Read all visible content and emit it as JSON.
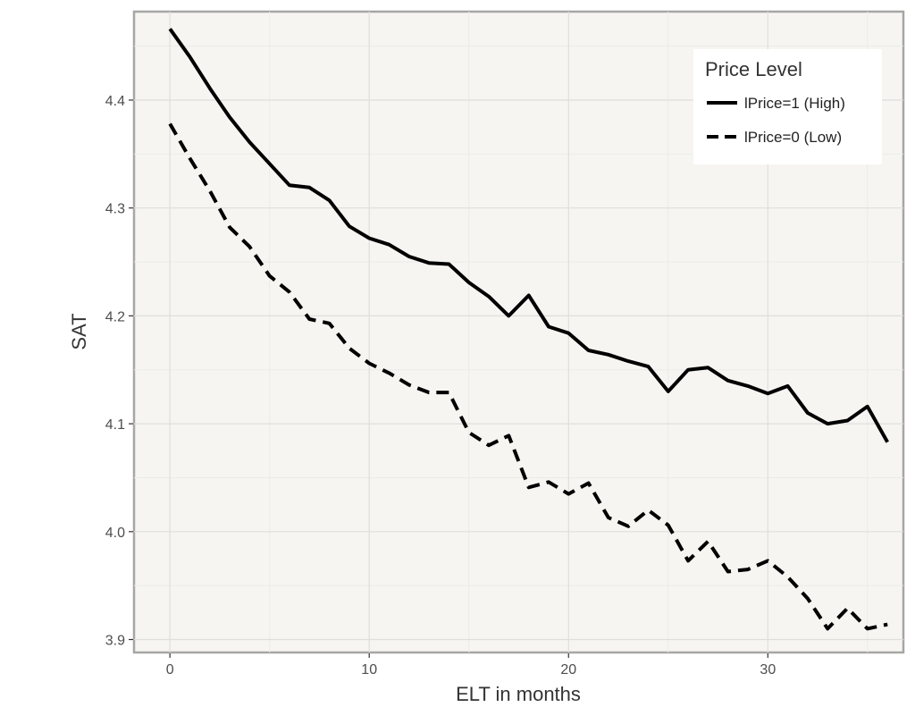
{
  "chart_data": {
    "type": "line",
    "xlabel": "ELT in months",
    "ylabel": "SAT",
    "xlim": [
      -1.8,
      36.8
    ],
    "ylim": [
      3.888,
      4.482
    ],
    "x_ticks": [
      0,
      10,
      20,
      30
    ],
    "y_ticks": [
      3.9,
      4.0,
      4.1,
      4.2,
      4.3,
      4.4
    ],
    "y_tick_labels": [
      "3.9",
      "4.0",
      "4.1",
      "4.2",
      "4.3",
      "4.4"
    ],
    "grid": true,
    "background_color": "#f6f5f1",
    "legend": {
      "title": "Price Level",
      "position": "top-right"
    },
    "x": [
      0,
      1,
      2,
      3,
      4,
      5,
      6,
      7,
      8,
      9,
      10,
      11,
      12,
      13,
      14,
      15,
      16,
      17,
      18,
      19,
      20,
      21,
      22,
      23,
      24,
      25,
      26,
      27,
      28,
      29,
      30,
      31,
      32,
      33,
      34,
      35,
      36
    ],
    "series": [
      {
        "name": "lPrice=1 (High)",
        "line_style": "solid",
        "color": "#000000",
        "values": [
          4.466,
          4.44,
          4.411,
          4.384,
          4.361,
          4.341,
          4.321,
          4.319,
          4.307,
          4.283,
          4.272,
          4.266,
          4.255,
          4.249,
          4.248,
          4.231,
          4.218,
          4.2,
          4.219,
          4.19,
          4.184,
          4.168,
          4.164,
          4.158,
          4.153,
          4.13,
          4.15,
          4.152,
          4.14,
          4.135,
          4.128,
          4.135,
          4.11,
          4.1,
          4.103,
          4.116,
          4.083
        ]
      },
      {
        "name": "lPrice=0 (Low)",
        "line_style": "dashed",
        "color": "#000000",
        "values": [
          4.378,
          4.346,
          4.316,
          4.282,
          4.264,
          4.237,
          4.222,
          4.197,
          4.193,
          4.17,
          4.156,
          4.147,
          4.136,
          4.129,
          4.129,
          4.092,
          4.08,
          4.089,
          4.041,
          4.046,
          4.035,
          4.045,
          4.013,
          4.005,
          4.02,
          4.006,
          3.973,
          3.991,
          3.963,
          3.965,
          3.973,
          3.958,
          3.938,
          3.91,
          3.929,
          3.91,
          3.914
        ]
      }
    ]
  }
}
